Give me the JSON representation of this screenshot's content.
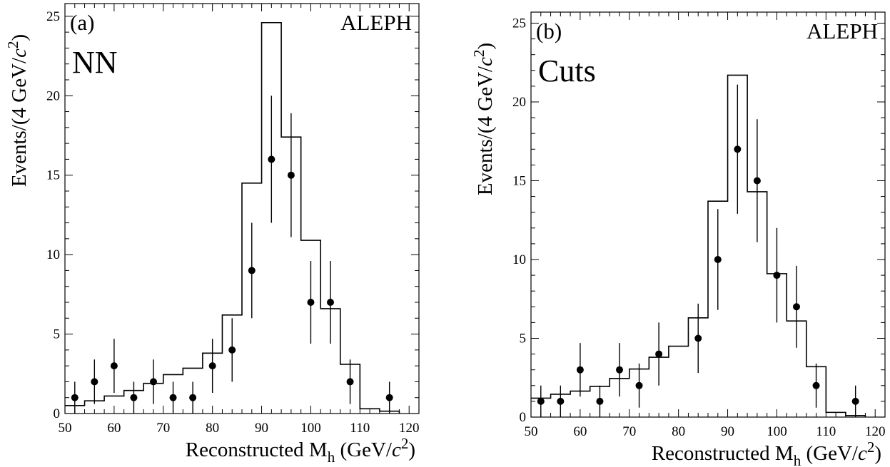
{
  "chart_data": [
    {
      "type": "histogram",
      "panel_label": "(a)",
      "experiment_label": "ALEPH",
      "method_label": "NN",
      "ylabel": "Events/(4 GeV/c²)",
      "xlabel": "Reconstructed M_h (GeV/c²)",
      "xlim": [
        50,
        122
      ],
      "ylim": [
        0,
        25.8
      ],
      "x_ticks": [
        50,
        60,
        70,
        80,
        90,
        100,
        110,
        120
      ],
      "y_ticks": [
        0,
        5,
        10,
        15,
        20,
        25
      ],
      "grid": false,
      "series": [
        {
          "kind": "histogram",
          "bin_edges": [
            50,
            54,
            58,
            62,
            66,
            70,
            74,
            78,
            82,
            86,
            90,
            94,
            98,
            102,
            106,
            110,
            114,
            118
          ],
          "values": [
            0.5,
            0.8,
            1.1,
            1.45,
            1.9,
            2.45,
            2.85,
            3.8,
            6.2,
            14.5,
            24.6,
            17.4,
            10.9,
            6.6,
            3.1,
            0.3,
            0.15
          ]
        },
        {
          "kind": "data-points",
          "x": [
            52,
            56,
            60,
            64,
            68,
            72,
            76,
            80,
            84,
            88,
            92,
            96,
            100,
            104,
            108,
            116
          ],
          "y": [
            1,
            2,
            3,
            1,
            2,
            1,
            1,
            3,
            4,
            9,
            16,
            15,
            7,
            7,
            2,
            1
          ],
          "yerr": [
            1,
            1.4,
            1.7,
            1,
            1.4,
            1,
            1,
            1.7,
            2,
            3,
            4,
            3.9,
            2.6,
            2.6,
            1.4,
            1
          ]
        }
      ]
    },
    {
      "type": "histogram",
      "panel_label": "(b)",
      "experiment_label": "ALEPH",
      "method_label": "Cuts",
      "ylabel": "Events/(4 GeV/c²)",
      "xlabel": "Reconstructed M_h (GeV/c²)",
      "xlim": [
        50,
        122
      ],
      "ylim": [
        0,
        25.7
      ],
      "x_ticks": [
        50,
        60,
        70,
        80,
        90,
        100,
        110,
        120
      ],
      "y_ticks": [
        0,
        5,
        10,
        15,
        20,
        25
      ],
      "grid": false,
      "series": [
        {
          "kind": "histogram",
          "bin_edges": [
            50,
            54,
            58,
            62,
            66,
            70,
            74,
            78,
            82,
            86,
            90,
            94,
            98,
            102,
            106,
            110,
            114,
            118
          ],
          "values": [
            1.2,
            1.45,
            1.65,
            1.95,
            2.45,
            3.05,
            3.8,
            4.5,
            6.3,
            13.7,
            21.7,
            14.3,
            9.1,
            6.1,
            3.2,
            0.3,
            0.1
          ]
        },
        {
          "kind": "data-points",
          "x": [
            52,
            56,
            60,
            64,
            68,
            72,
            76,
            84,
            88,
            92,
            96,
            100,
            104,
            108,
            116
          ],
          "y": [
            1,
            1,
            3,
            1,
            3,
            2,
            4,
            5,
            10,
            17,
            15,
            9,
            7,
            2,
            1
          ],
          "yerr": [
            1,
            1,
            1.7,
            1,
            1.7,
            1.4,
            2,
            2.2,
            3.2,
            4.1,
            3.9,
            3,
            2.6,
            1.4,
            1
          ]
        }
      ]
    }
  ]
}
